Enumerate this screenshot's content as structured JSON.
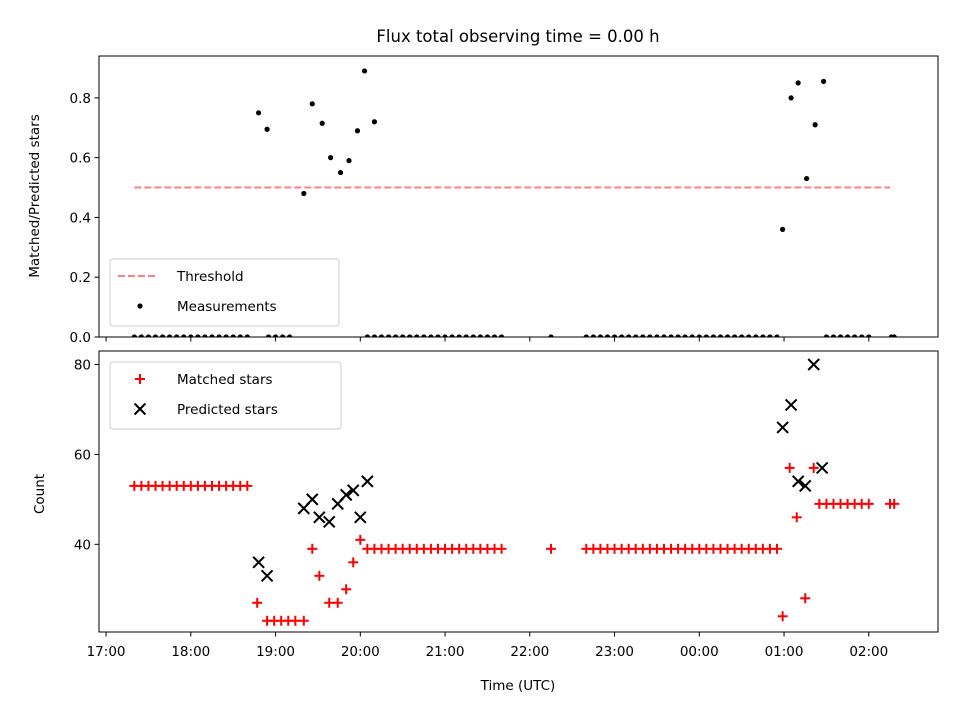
{
  "chart_data": [
    {
      "type": "scatter",
      "title": "Flux total observing time = 0.00 h",
      "xlabel": "",
      "ylabel": "Matched/Predicted stars",
      "xlim": [
        "16:55",
        "02:49"
      ],
      "ylim": [
        0,
        0.94
      ],
      "yticks": [
        0.0,
        0.2,
        0.4,
        0.6,
        0.8
      ],
      "ytick_labels": [
        "0.0",
        "0.2",
        "0.4",
        "0.6",
        "0.8"
      ],
      "threshold": {
        "value": 0.5,
        "x_start": "17:20",
        "x_end": "02:15",
        "color": "#ff7f7f",
        "style": "dashed"
      },
      "legend": {
        "position": "lower-left",
        "entries": [
          "Threshold",
          "Measurements"
        ]
      },
      "series": [
        {
          "name": "Measurements",
          "color": "#000000",
          "marker": "dot",
          "points": [
            [
              "18:48",
              0.75
            ],
            [
              "18:54",
              0.695
            ],
            [
              "19:20",
              0.48
            ],
            [
              "19:26",
              0.78
            ],
            [
              "19:33",
              0.715
            ],
            [
              "19:39",
              0.6
            ],
            [
              "19:46",
              0.55
            ],
            [
              "19:52",
              0.59
            ],
            [
              "19:58",
              0.69
            ],
            [
              "20:03",
              0.89
            ],
            [
              "20:10",
              0.72
            ],
            [
              "00:59",
              0.36
            ],
            [
              "01:05",
              0.8
            ],
            [
              "01:10",
              0.85
            ],
            [
              "01:16",
              0.53
            ],
            [
              "01:22",
              0.71
            ],
            [
              "01:28",
              0.855
            ],
            [
              "17:20",
              0
            ],
            [
              "17:25",
              0
            ],
            [
              "17:30",
              0
            ],
            [
              "17:35",
              0
            ],
            [
              "17:40",
              0
            ],
            [
              "17:45",
              0
            ],
            [
              "17:50",
              0
            ],
            [
              "17:55",
              0
            ],
            [
              "18:00",
              0
            ],
            [
              "18:05",
              0
            ],
            [
              "18:10",
              0
            ],
            [
              "18:15",
              0
            ],
            [
              "18:20",
              0
            ],
            [
              "18:25",
              0
            ],
            [
              "18:30",
              0
            ],
            [
              "18:35",
              0
            ],
            [
              "18:40",
              0
            ],
            [
              "18:55",
              0
            ],
            [
              "19:00",
              0
            ],
            [
              "19:05",
              0
            ],
            [
              "19:10",
              0
            ],
            [
              "20:05",
              0
            ],
            [
              "20:10",
              0
            ],
            [
              "20:15",
              0
            ],
            [
              "20:20",
              0
            ],
            [
              "20:25",
              0
            ],
            [
              "20:30",
              0
            ],
            [
              "20:35",
              0
            ],
            [
              "20:40",
              0
            ],
            [
              "20:45",
              0
            ],
            [
              "20:50",
              0
            ],
            [
              "20:55",
              0
            ],
            [
              "21:00",
              0
            ],
            [
              "21:05",
              0
            ],
            [
              "21:10",
              0
            ],
            [
              "21:15",
              0
            ],
            [
              "21:20",
              0
            ],
            [
              "21:25",
              0
            ],
            [
              "21:30",
              0
            ],
            [
              "21:35",
              0
            ],
            [
              "21:40",
              0
            ],
            [
              "22:15",
              0
            ],
            [
              "22:40",
              0
            ],
            [
              "22:45",
              0
            ],
            [
              "22:50",
              0
            ],
            [
              "22:55",
              0
            ],
            [
              "23:00",
              0
            ],
            [
              "23:05",
              0
            ],
            [
              "23:10",
              0
            ],
            [
              "23:15",
              0
            ],
            [
              "23:20",
              0
            ],
            [
              "23:25",
              0
            ],
            [
              "23:30",
              0
            ],
            [
              "23:35",
              0
            ],
            [
              "23:40",
              0
            ],
            [
              "23:45",
              0
            ],
            [
              "23:50",
              0
            ],
            [
              "23:55",
              0
            ],
            [
              "00:00",
              0
            ],
            [
              "00:05",
              0
            ],
            [
              "00:10",
              0
            ],
            [
              "00:15",
              0
            ],
            [
              "00:20",
              0
            ],
            [
              "00:25",
              0
            ],
            [
              "00:30",
              0
            ],
            [
              "00:35",
              0
            ],
            [
              "00:40",
              0
            ],
            [
              "00:45",
              0
            ],
            [
              "00:50",
              0
            ],
            [
              "00:55",
              0
            ],
            [
              "01:30",
              0
            ],
            [
              "01:35",
              0
            ],
            [
              "01:40",
              0
            ],
            [
              "01:45",
              0
            ],
            [
              "01:50",
              0
            ],
            [
              "01:55",
              0
            ],
            [
              "02:00",
              0
            ],
            [
              "02:16",
              0
            ],
            [
              "02:18",
              0
            ]
          ]
        }
      ]
    },
    {
      "type": "scatter",
      "title": "",
      "xlabel": "Time (UTC)",
      "ylabel": "Count",
      "xlim": [
        "16:55",
        "02:49"
      ],
      "ylim": [
        20.5,
        83
      ],
      "yticks": [
        40,
        60,
        80
      ],
      "ytick_labels": [
        "40",
        "60",
        "80"
      ],
      "xticks": [
        "17:00",
        "18:00",
        "19:00",
        "20:00",
        "21:00",
        "22:00",
        "23:00",
        "00:00",
        "01:00",
        "02:00"
      ],
      "legend": {
        "position": "upper-left",
        "entries": [
          "Matched stars",
          "Predicted stars"
        ]
      },
      "series": [
        {
          "name": "Matched stars",
          "color": "#ff0000",
          "marker": "plus",
          "points": [
            [
              "17:20",
              53
            ],
            [
              "17:25",
              53
            ],
            [
              "17:30",
              53
            ],
            [
              "17:35",
              53
            ],
            [
              "17:40",
              53
            ],
            [
              "17:45",
              53
            ],
            [
              "17:50",
              53
            ],
            [
              "17:55",
              53
            ],
            [
              "18:00",
              53
            ],
            [
              "18:05",
              53
            ],
            [
              "18:10",
              53
            ],
            [
              "18:15",
              53
            ],
            [
              "18:20",
              53
            ],
            [
              "18:25",
              53
            ],
            [
              "18:30",
              53
            ],
            [
              "18:35",
              53
            ],
            [
              "18:40",
              53
            ],
            [
              "18:47",
              27
            ],
            [
              "18:54",
              23
            ],
            [
              "18:59",
              23
            ],
            [
              "19:04",
              23
            ],
            [
              "19:09",
              23
            ],
            [
              "19:14",
              23
            ],
            [
              "19:20",
              23
            ],
            [
              "19:26",
              39
            ],
            [
              "19:31",
              33
            ],
            [
              "19:38",
              27
            ],
            [
              "19:44",
              27
            ],
            [
              "19:50",
              30
            ],
            [
              "19:55",
              36
            ],
            [
              "20:00",
              41
            ],
            [
              "20:05",
              39
            ],
            [
              "20:10",
              39
            ],
            [
              "20:15",
              39
            ],
            [
              "20:20",
              39
            ],
            [
              "20:25",
              39
            ],
            [
              "20:30",
              39
            ],
            [
              "20:35",
              39
            ],
            [
              "20:40",
              39
            ],
            [
              "20:45",
              39
            ],
            [
              "20:50",
              39
            ],
            [
              "20:55",
              39
            ],
            [
              "21:00",
              39
            ],
            [
              "21:05",
              39
            ],
            [
              "21:10",
              39
            ],
            [
              "21:15",
              39
            ],
            [
              "21:20",
              39
            ],
            [
              "21:25",
              39
            ],
            [
              "21:30",
              39
            ],
            [
              "21:35",
              39
            ],
            [
              "21:40",
              39
            ],
            [
              "22:15",
              39
            ],
            [
              "22:40",
              39
            ],
            [
              "22:45",
              39
            ],
            [
              "22:50",
              39
            ],
            [
              "22:55",
              39
            ],
            [
              "23:00",
              39
            ],
            [
              "23:05",
              39
            ],
            [
              "23:10",
              39
            ],
            [
              "23:15",
              39
            ],
            [
              "23:20",
              39
            ],
            [
              "23:25",
              39
            ],
            [
              "23:30",
              39
            ],
            [
              "23:35",
              39
            ],
            [
              "23:40",
              39
            ],
            [
              "23:45",
              39
            ],
            [
              "23:50",
              39
            ],
            [
              "23:55",
              39
            ],
            [
              "00:00",
              39
            ],
            [
              "00:05",
              39
            ],
            [
              "00:10",
              39
            ],
            [
              "00:15",
              39
            ],
            [
              "00:20",
              39
            ],
            [
              "00:25",
              39
            ],
            [
              "00:30",
              39
            ],
            [
              "00:35",
              39
            ],
            [
              "00:40",
              39
            ],
            [
              "00:45",
              39
            ],
            [
              "00:50",
              39
            ],
            [
              "00:55",
              39
            ],
            [
              "00:59",
              24
            ],
            [
              "01:04",
              57
            ],
            [
              "01:09",
              46
            ],
            [
              "01:15",
              28
            ],
            [
              "01:21",
              57
            ],
            [
              "01:25",
              49
            ],
            [
              "01:30",
              49
            ],
            [
              "01:35",
              49
            ],
            [
              "01:40",
              49
            ],
            [
              "01:45",
              49
            ],
            [
              "01:50",
              49
            ],
            [
              "01:55",
              49
            ],
            [
              "02:00",
              49
            ],
            [
              "02:15",
              49
            ],
            [
              "02:18",
              49
            ]
          ]
        },
        {
          "name": "Predicted stars",
          "color": "#000000",
          "marker": "x",
          "points": [
            [
              "18:48",
              36
            ],
            [
              "18:54",
              33
            ],
            [
              "19:20",
              48
            ],
            [
              "19:26",
              50
            ],
            [
              "19:31",
              46
            ],
            [
              "19:38",
              45
            ],
            [
              "19:44",
              49
            ],
            [
              "19:50",
              51
            ],
            [
              "19:55",
              52
            ],
            [
              "20:00",
              46
            ],
            [
              "20:05",
              54
            ],
            [
              "00:59",
              66
            ],
            [
              "01:05",
              71
            ],
            [
              "01:10",
              54
            ],
            [
              "01:15",
              53
            ],
            [
              "01:21",
              80
            ],
            [
              "01:27",
              57
            ]
          ]
        }
      ]
    }
  ]
}
